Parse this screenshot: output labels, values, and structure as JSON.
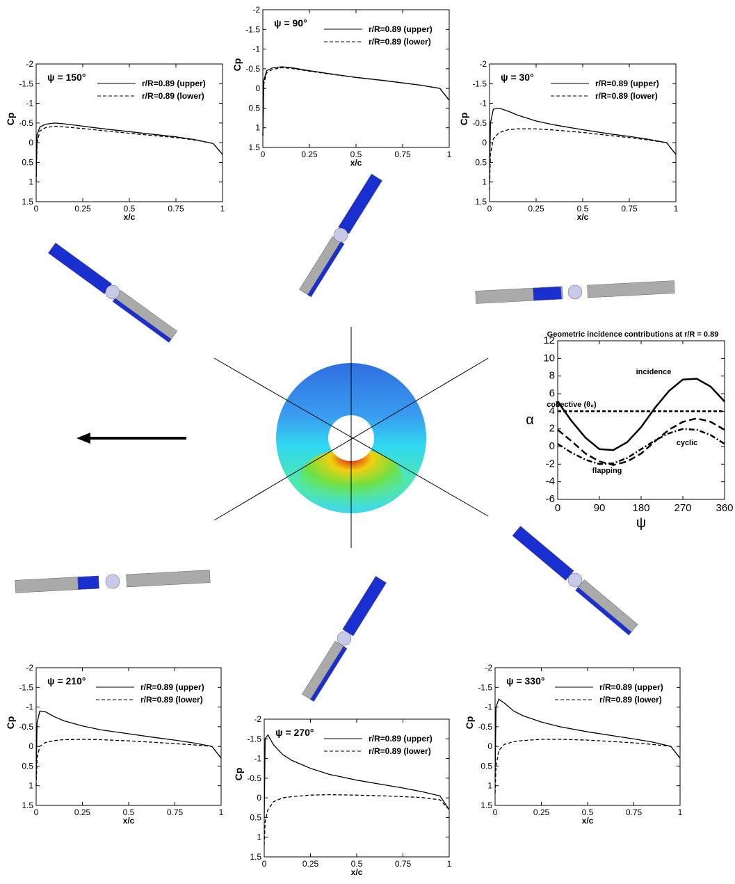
{
  "chart_data": [
    {
      "type": "line",
      "title": "ψ = 150°",
      "xlabel": "x/c",
      "ylabel": "Cp",
      "x": [
        0,
        0.005,
        0.02,
        0.05,
        0.1,
        0.15,
        0.25,
        0.35,
        0.5,
        0.65,
        0.75,
        0.85,
        0.95,
        1
      ],
      "series": [
        {
          "name": "r/R=0.89 (upper)",
          "color": "#000000",
          "linestyle": "solid",
          "values": [
            0.9,
            -0.2,
            -0.4,
            -0.47,
            -0.5,
            -0.48,
            -0.42,
            -0.36,
            -0.28,
            -0.2,
            -0.15,
            -0.08,
            0.02,
            0.3
          ]
        },
        {
          "name": "r/R=0.89 (lower)",
          "color": "#000000",
          "linestyle": "dashed",
          "values": [
            1.0,
            0,
            -0.3,
            -0.38,
            -0.42,
            -0.4,
            -0.36,
            -0.31,
            -0.24,
            -0.17,
            -0.13,
            -0.07,
            0.02,
            0.3
          ]
        }
      ],
      "xlim": [
        0,
        1
      ],
      "xticks": [
        0,
        0.25,
        0.5,
        0.75,
        1
      ],
      "ylim": [
        1.5,
        -2
      ],
      "yticks": [
        -2,
        -1.5,
        -1,
        -0.5,
        0,
        0.5,
        1,
        1.5
      ]
    },
    {
      "type": "line",
      "title": "ψ = 90°",
      "xlabel": "x/c",
      "ylabel": "Cp",
      "x": [
        0,
        0.005,
        0.02,
        0.05,
        0.1,
        0.15,
        0.25,
        0.35,
        0.5,
        0.65,
        0.75,
        0.85,
        0.95,
        1
      ],
      "series": [
        {
          "name": "r/R=0.89 (upper)",
          "color": "#000000",
          "linestyle": "solid",
          "values": [
            1.2,
            -0.2,
            -0.45,
            -0.52,
            -0.55,
            -0.53,
            -0.45,
            -0.38,
            -0.28,
            -0.2,
            -0.14,
            -0.08,
            0,
            0.3
          ]
        },
        {
          "name": "r/R=0.89 (lower)",
          "color": "#000000",
          "linestyle": "dashed",
          "values": [
            1.2,
            -0.1,
            -0.4,
            -0.48,
            -0.53,
            -0.51,
            -0.44,
            -0.37,
            -0.28,
            -0.2,
            -0.14,
            -0.08,
            0,
            0.3
          ]
        }
      ],
      "xlim": [
        0,
        1
      ],
      "xticks": [
        0,
        0.25,
        0.5,
        0.75,
        1
      ],
      "ylim": [
        1.5,
        -2
      ],
      "yticks": [
        -2,
        -1.5,
        -1,
        -0.5,
        0,
        0.5,
        1,
        1.5
      ]
    },
    {
      "type": "line",
      "title": "ψ = 30°",
      "xlabel": "x/c",
      "ylabel": "Cp",
      "x": [
        0,
        0.005,
        0.02,
        0.05,
        0.1,
        0.15,
        0.25,
        0.35,
        0.5,
        0.65,
        0.75,
        0.85,
        0.95,
        1
      ],
      "series": [
        {
          "name": "r/R=0.89 (upper)",
          "color": "#000000",
          "linestyle": "solid",
          "values": [
            1.0,
            -0.5,
            -0.85,
            -0.88,
            -0.8,
            -0.7,
            -0.55,
            -0.45,
            -0.33,
            -0.22,
            -0.16,
            -0.09,
            0,
            0.3
          ]
        },
        {
          "name": "r/R=0.89 (lower)",
          "color": "#000000",
          "linestyle": "dashed",
          "values": [
            1.2,
            0.3,
            -0.1,
            -0.25,
            -0.33,
            -0.35,
            -0.35,
            -0.32,
            -0.26,
            -0.18,
            -0.13,
            -0.07,
            0,
            0.3
          ]
        }
      ],
      "xlim": [
        0,
        1
      ],
      "xticks": [
        0,
        0.25,
        0.5,
        0.75,
        1
      ],
      "ylim": [
        1.5,
        -2
      ],
      "yticks": [
        -2,
        -1.5,
        -1,
        -0.5,
        0,
        0.5,
        1,
        1.5
      ]
    },
    {
      "type": "line",
      "title": "ψ = 210°",
      "xlabel": "x/c",
      "ylabel": "Cp",
      "x": [
        0,
        0.005,
        0.02,
        0.05,
        0.1,
        0.15,
        0.25,
        0.35,
        0.5,
        0.65,
        0.75,
        0.85,
        0.95,
        1
      ],
      "series": [
        {
          "name": "r/R=0.89 (upper)",
          "color": "#000000",
          "linestyle": "solid",
          "values": [
            0.8,
            -0.6,
            -0.9,
            -0.88,
            -0.75,
            -0.65,
            -0.52,
            -0.42,
            -0.32,
            -0.22,
            -0.16,
            -0.09,
            0,
            0.3
          ]
        },
        {
          "name": "r/R=0.89 (lower)",
          "color": "#000000",
          "linestyle": "dashed",
          "values": [
            1.0,
            0.3,
            0,
            -0.1,
            -0.15,
            -0.17,
            -0.18,
            -0.17,
            -0.14,
            -0.1,
            -0.07,
            -0.04,
            0,
            0.3
          ]
        }
      ],
      "xlim": [
        0,
        1
      ],
      "xticks": [
        0,
        0.25,
        0.5,
        0.75,
        1
      ],
      "ylim": [
        1.5,
        -2
      ],
      "yticks": [
        -2,
        -1.5,
        -1,
        -0.5,
        0,
        0.5,
        1,
        1.5
      ]
    },
    {
      "type": "line",
      "title": "ψ = 270°",
      "xlabel": "x/c",
      "ylabel": "Cp",
      "x": [
        0,
        0.005,
        0.02,
        0.05,
        0.1,
        0.15,
        0.25,
        0.35,
        0.5,
        0.65,
        0.75,
        0.85,
        0.95,
        1
      ],
      "series": [
        {
          "name": "r/R=0.89 (upper)",
          "color": "#000000",
          "linestyle": "solid",
          "values": [
            0.5,
            -1.5,
            -1.6,
            -1.35,
            -1.1,
            -0.95,
            -0.75,
            -0.6,
            -0.45,
            -0.33,
            -0.25,
            -0.16,
            -0.05,
            0.3
          ]
        },
        {
          "name": "r/R=0.89 (lower)",
          "color": "#000000",
          "linestyle": "dashed",
          "values": [
            1.2,
            0.6,
            0.3,
            0.1,
            0,
            -0.03,
            -0.07,
            -0.08,
            -0.07,
            -0.05,
            -0.03,
            -0.01,
            0.05,
            0.3
          ]
        }
      ],
      "xlim": [
        0,
        1
      ],
      "xticks": [
        0,
        0.25,
        0.5,
        0.75,
        1
      ],
      "ylim": [
        1.5,
        -2
      ],
      "yticks": [
        -2,
        -1.5,
        -1,
        -0.5,
        0,
        0.5,
        1,
        1.5
      ]
    },
    {
      "type": "line",
      "title": "ψ = 330°",
      "xlabel": "x/c",
      "ylabel": "Cp",
      "x": [
        0,
        0.005,
        0.02,
        0.05,
        0.1,
        0.15,
        0.25,
        0.35,
        0.5,
        0.65,
        0.75,
        0.85,
        0.95,
        1
      ],
      "series": [
        {
          "name": "r/R=0.89 (upper)",
          "color": "#000000",
          "linestyle": "solid",
          "values": [
            0.8,
            -1.0,
            -1.2,
            -1.1,
            -0.9,
            -0.78,
            -0.62,
            -0.5,
            -0.37,
            -0.26,
            -0.19,
            -0.11,
            0,
            0.3
          ]
        },
        {
          "name": "r/R=0.89 (lower)",
          "color": "#000000",
          "linestyle": "dashed",
          "values": [
            1.2,
            0.5,
            0.1,
            -0.05,
            -0.12,
            -0.15,
            -0.18,
            -0.18,
            -0.16,
            -0.12,
            -0.09,
            -0.05,
            0,
            0.3
          ]
        }
      ],
      "xlim": [
        0,
        1
      ],
      "xticks": [
        0,
        0.25,
        0.5,
        0.75,
        1
      ],
      "ylim": [
        1.5,
        -2
      ],
      "yticks": [
        -2,
        -1.5,
        -1,
        -0.5,
        0,
        0.5,
        1,
        1.5
      ]
    },
    {
      "type": "line",
      "title": "Geometric incidence contributions at r/R = 0.89",
      "xlabel": "ψ",
      "ylabel": "α",
      "x": [
        0,
        30,
        60,
        90,
        120,
        150,
        180,
        210,
        240,
        270,
        300,
        330,
        360
      ],
      "series": [
        {
          "name": "incidence",
          "color": "#000000",
          "linestyle": "solid",
          "values": [
            5.1,
            2.9,
            1.0,
            -0.3,
            -0.4,
            0.5,
            2.2,
            4.4,
            6.3,
            7.6,
            7.7,
            6.8,
            5.1
          ]
        },
        {
          "name": "collective (θ₀)",
          "color": "#000000",
          "linestyle": "dashed",
          "values": [
            4,
            4,
            4,
            4,
            4,
            4,
            4,
            4,
            4,
            4,
            4,
            4,
            4
          ]
        },
        {
          "name": "cyclic",
          "color": "#000000",
          "linestyle": "long-dashed",
          "values": [
            1.9,
            0.6,
            -0.8,
            -1.7,
            -2.1,
            -1.7,
            -0.8,
            0.6,
            1.9,
            2.8,
            3.2,
            2.8,
            1.9
          ]
        },
        {
          "name": "flapping",
          "color": "#000000",
          "linestyle": "dash-dot",
          "values": [
            0.3,
            -0.7,
            -1.5,
            -2.0,
            -1.9,
            -1.3,
            -0.3,
            0.7,
            1.5,
            2.0,
            1.9,
            1.3,
            0.3
          ]
        }
      ],
      "xlim": [
        0,
        360
      ],
      "xticks": [
        0,
        90,
        180,
        270,
        360
      ],
      "ylim": [
        -6,
        12
      ],
      "yticks": [
        -6,
        -4,
        -2,
        0,
        2,
        4,
        6,
        8,
        10,
        12
      ]
    }
  ]
}
